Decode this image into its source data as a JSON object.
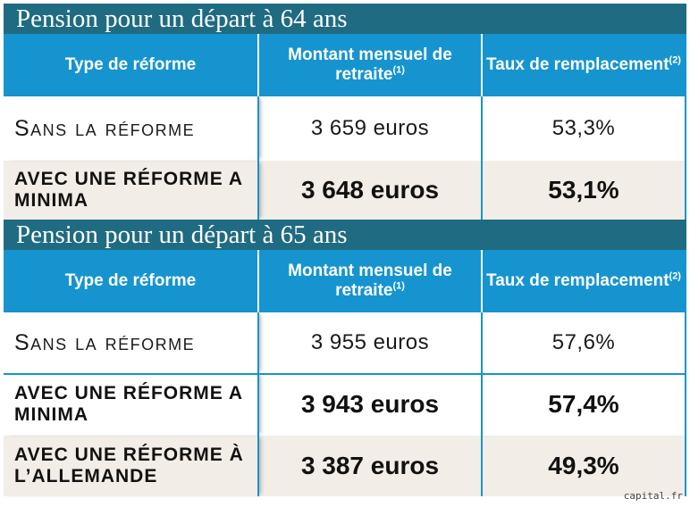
{
  "sections": [
    {
      "title": "Pension pour un départ à 64 ans",
      "headers": {
        "type": "Type de réforme",
        "amount": "Montant mensuel de retraite",
        "amount_note": "(1)",
        "rate": "Taux de remplacement",
        "rate_note": "(2)"
      },
      "rows": [
        {
          "label": "Sans la réforme",
          "amount": "3 659 euros",
          "rate": "53,3%"
        },
        {
          "label": "Avec une réforme a minima",
          "amount": "3 648 euros",
          "rate": "53,1%"
        }
      ]
    },
    {
      "title": "Pension pour un départ à 65 ans",
      "headers": {
        "type": "Type de réforme",
        "amount": "Montant mensuel de retraite",
        "amount_note": "(1)",
        "rate": "Taux de remplacement",
        "rate_note": "(2)"
      },
      "rows": [
        {
          "label": "Sans la réforme",
          "amount": "3 955 euros",
          "rate": "57,6%"
        },
        {
          "label": "Avec une réforme a minima",
          "amount": "3 943 euros",
          "rate": "57,4%"
        },
        {
          "label": "Avec une réforme à l’allemande",
          "amount": "3 387 euros",
          "rate": "49,3%"
        }
      ]
    }
  ],
  "source": "capital.fr",
  "colors": {
    "title_bar": "#1f6b82",
    "header": "#1694cf",
    "alt_row": "#f2ede6"
  }
}
